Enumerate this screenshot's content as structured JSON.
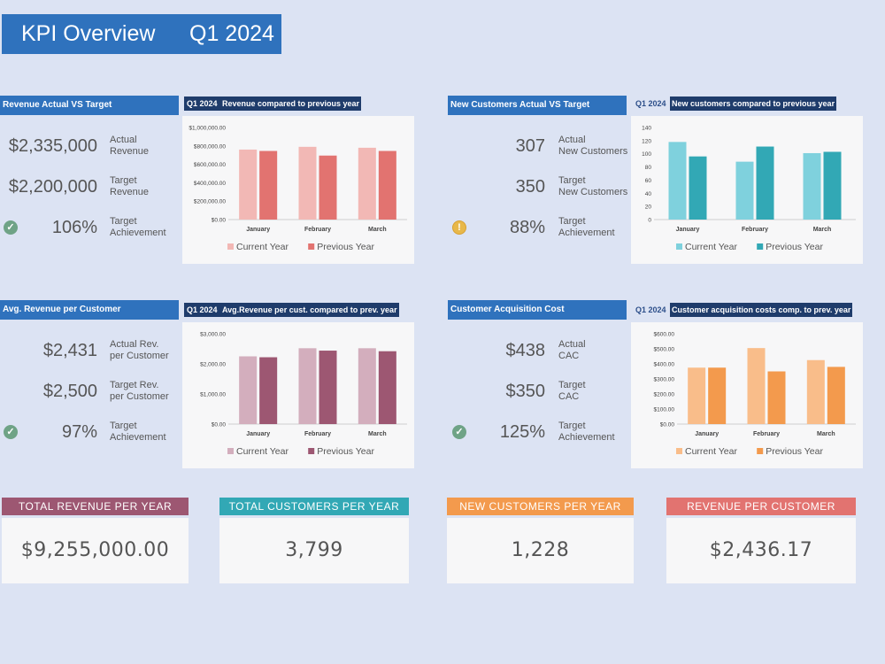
{
  "header": {
    "title": "KPI Overview",
    "period": "Q1 2024"
  },
  "sections": {
    "revenue": {
      "heading": "Revenue Actual VS Target",
      "quarter": "Q1 2024",
      "chart_title": "Revenue compared to previous year",
      "kpis": [
        {
          "value": "$2,335,000",
          "label1": "Actual",
          "label2": "Revenue"
        },
        {
          "value": "$2,200,000",
          "label1": "Target",
          "label2": "Revenue"
        },
        {
          "value": "106%",
          "label1": "Target",
          "label2": "Achievement"
        }
      ],
      "status": "ok"
    },
    "new_customers": {
      "heading": "New Customers Actual VS Target",
      "quarter": "Q1 2024",
      "chart_title": "New customers compared to previous year",
      "kpis": [
        {
          "value": "307",
          "label1": "Actual",
          "label2": "New Customers"
        },
        {
          "value": "350",
          "label1": "Target",
          "label2": "New Customers"
        },
        {
          "value": "88%",
          "label1": "Target",
          "label2": "Achievement"
        }
      ],
      "status": "warning"
    },
    "avg_revenue": {
      "heading": "Avg. Revenue per Customer",
      "quarter": "Q1 2024",
      "chart_title": "Avg.Revenue per cust. compared to prev. year",
      "kpis": [
        {
          "value": "$2,431",
          "label1": "Actual Rev.",
          "label2": "per Customer"
        },
        {
          "value": "$2,500",
          "label1": "Target Rev.",
          "label2": "per Customer"
        },
        {
          "value": "97%",
          "label1": "Target",
          "label2": "Achievement"
        }
      ],
      "status": "ok"
    },
    "cac": {
      "heading": "Customer Acquisition Cost",
      "quarter": "Q1 2024",
      "chart_title": "Customer acquisition costs comp. to prev. year",
      "kpis": [
        {
          "value": "$438",
          "label1": "Actual",
          "label2": "CAC"
        },
        {
          "value": "$350",
          "label1": "Target",
          "label2": "CAC"
        },
        {
          "value": "125%",
          "label1": "Target",
          "label2": "Achievement"
        }
      ],
      "status": "ok"
    }
  },
  "chart_data": [
    {
      "id": "revenue",
      "type": "bar",
      "categories": [
        "January",
        "February",
        "March"
      ],
      "yticks": [
        "$0.00",
        "$200,000.00",
        "$400,000.00",
        "$600,000.00",
        "$800,000.00",
        "$1,000,000.00"
      ],
      "ylim": [
        0,
        1000000
      ],
      "series": [
        {
          "name": "Current Year",
          "values": [
            760000,
            790000,
            780000
          ],
          "color": "#f2b8b5"
        },
        {
          "name": "Previous Year",
          "values": [
            745000,
            695000,
            745000
          ],
          "color": "#e27370"
        }
      ],
      "legend": "bottom"
    },
    {
      "id": "new_customers",
      "type": "bar",
      "categories": [
        "January",
        "February",
        "March"
      ],
      "yticks": [
        "0",
        "20",
        "40",
        "60",
        "80",
        "100",
        "120",
        "140"
      ],
      "ylim": [
        0,
        140
      ],
      "series": [
        {
          "name": "Current Year",
          "values": [
            118,
            88,
            101
          ],
          "color": "#7fd1dd"
        },
        {
          "name": "Previous Year",
          "values": [
            96,
            111,
            103
          ],
          "color": "#32a8b5"
        }
      ],
      "legend": "bottom"
    },
    {
      "id": "avg_revenue",
      "type": "bar",
      "categories": [
        "January",
        "February",
        "March"
      ],
      "yticks": [
        "$0.00",
        "$1,000.00",
        "$2,000.00",
        "$3,000.00"
      ],
      "ylim": [
        0,
        3000
      ],
      "series": [
        {
          "name": "Current Year",
          "values": [
            2250,
            2520,
            2520
          ],
          "color": "#d3aebd"
        },
        {
          "name": "Previous Year",
          "values": [
            2220,
            2440,
            2420
          ],
          "color": "#9d5772"
        }
      ],
      "legend": "bottom"
    },
    {
      "id": "cac",
      "type": "bar",
      "categories": [
        "January",
        "February",
        "March"
      ],
      "yticks": [
        "$0.00",
        "$100.00",
        "$200.00",
        "$300.00",
        "$400.00",
        "$500.00",
        "$600.00"
      ],
      "ylim": [
        0,
        600
      ],
      "series": [
        {
          "name": "Current Year",
          "values": [
            375,
            505,
            425
          ],
          "color": "#f9bd8a"
        },
        {
          "name": "Previous Year",
          "values": [
            375,
            350,
            380
          ],
          "color": "#f39a4d"
        }
      ],
      "legend": "bottom"
    }
  ],
  "cards": [
    {
      "title": "TOTAL REVENUE PER YEAR",
      "value": "$9,255,000.00",
      "color": "#9d5772"
    },
    {
      "title": "TOTAL CUSTOMERS PER YEAR",
      "value": "3,799",
      "color": "#32a8b5"
    },
    {
      "title": "NEW CUSTOMERS PER YEAR",
      "value": "1,228",
      "color": "#f39a4d"
    },
    {
      "title": "REVENUE PER CUSTOMER",
      "value": "$2,436.17",
      "color": "#e27370"
    }
  ]
}
